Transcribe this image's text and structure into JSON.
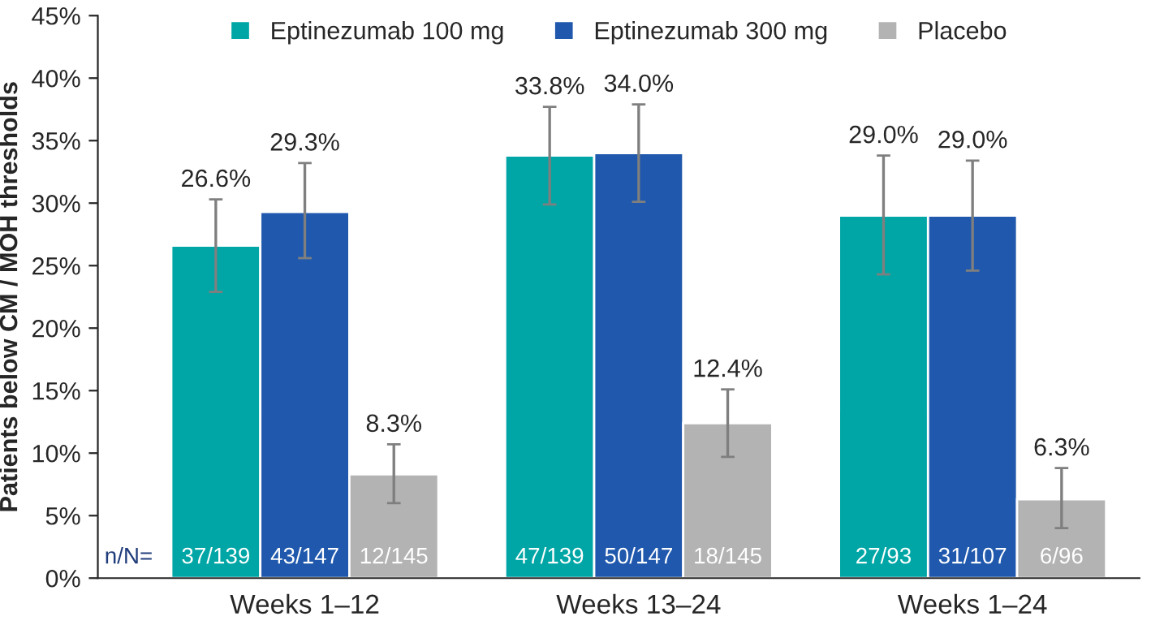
{
  "chart_data": {
    "type": "bar",
    "ylabel": "Patients below CM / MOH thresholds",
    "categories": [
      "Weeks 1–12",
      "Weeks 13–24",
      "Weeks 1–24"
    ],
    "series": [
      {
        "name": "Eptinezumab 100 mg",
        "color": "#00a6a6",
        "values": [
          26.6,
          33.8,
          29.0
        ],
        "errors": [
          [
            22.9,
            30.3
          ],
          [
            29.9,
            37.7
          ],
          [
            24.3,
            33.8
          ]
        ],
        "value_labels": [
          "26.6%",
          "33.8%",
          "29.0%"
        ]
      },
      {
        "name": "Eptinezumab 300 mg",
        "color": "#1f58ac",
        "values": [
          29.3,
          34.0,
          29.0
        ],
        "errors": [
          [
            25.6,
            33.2
          ],
          [
            30.1,
            37.9
          ],
          [
            24.6,
            33.4
          ]
        ],
        "value_labels": [
          "29.3%",
          "34.0%",
          "29.0%"
        ]
      },
      {
        "name": "Placebo",
        "color": "#b3b3b3",
        "values": [
          8.3,
          12.4,
          6.3
        ],
        "errors": [
          [
            6.0,
            10.7
          ],
          [
            9.7,
            15.1
          ],
          [
            4.0,
            8.8
          ]
        ],
        "value_labels": [
          "8.3%",
          "12.4%",
          "6.3%"
        ]
      }
    ],
    "ylim": [
      0,
      45
    ],
    "yticks": [
      {
        "value": 0,
        "label": "0%"
      },
      {
        "value": 5,
        "label": "5%"
      },
      {
        "value": 10,
        "label": "10%"
      },
      {
        "value": 15,
        "label": "15%"
      },
      {
        "value": 20,
        "label": "20%"
      },
      {
        "value": 25,
        "label": "25%"
      },
      {
        "value": 30,
        "label": "30%"
      },
      {
        "value": 35,
        "label": "35%"
      },
      {
        "value": 40,
        "label": "40%"
      },
      {
        "value": 45,
        "label": "45%"
      }
    ],
    "annotations": [
      "n/N=",
      "37/139",
      "43/147",
      "12/145",
      "47/139",
      "50/147",
      "18/145",
      "27/93",
      "31/107",
      "6/96"
    ],
    "legend": "top",
    "grid": false
  }
}
